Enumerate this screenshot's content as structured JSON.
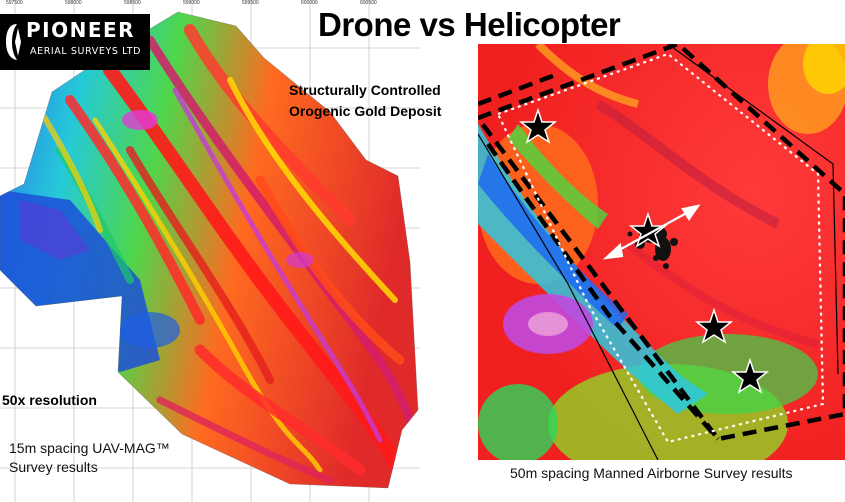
{
  "title": "Drone vs Helicopter",
  "logo": {
    "name": "PIONEER",
    "subtitle": "AERIAL SURVEYS LTD"
  },
  "deposit": {
    "line1": "Structurally Controlled",
    "line2": "Orogenic Gold Deposit"
  },
  "left_panel": {
    "resolution_label": "50x resolution",
    "caption_line1": "15m spacing UAV-MAG™",
    "caption_line2": "Survey results",
    "grid_labels": [
      "597500",
      "598000",
      "598500",
      "599000",
      "599500",
      "600000",
      "600500"
    ]
  },
  "right_panel": {
    "caption": "50m spacing Manned Airborne Survey results"
  },
  "colors": {
    "magnetic_high": "#ff1a1a",
    "magnetic_mid": "#ffe600",
    "magnetic_low": "#1f6bff",
    "magnetic_lowest": "#c040e0",
    "background": "#ffffff"
  }
}
